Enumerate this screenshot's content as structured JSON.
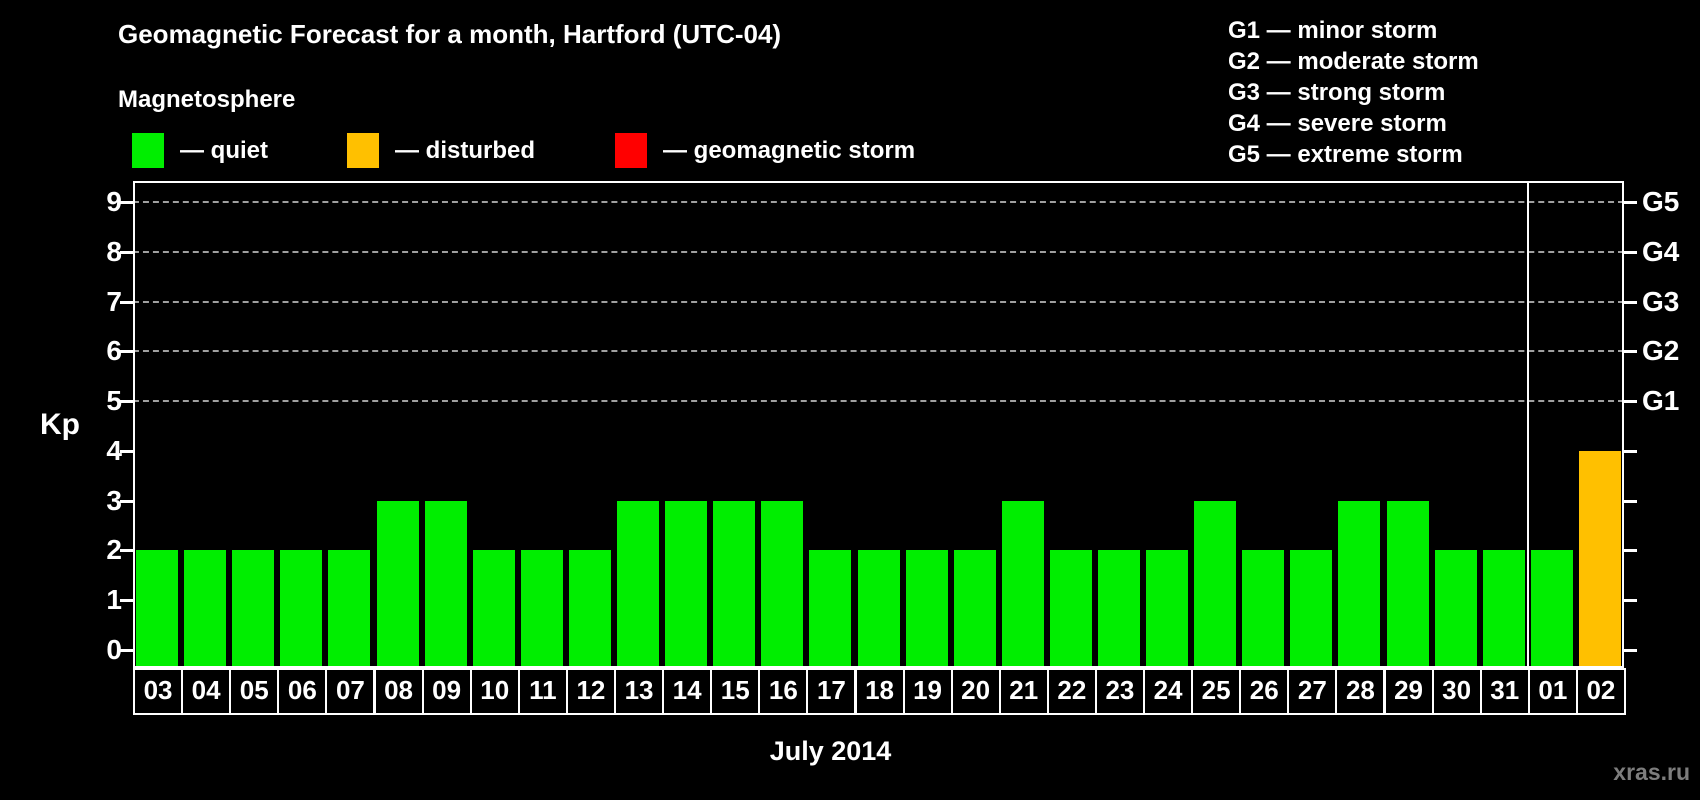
{
  "title": "Geomagnetic Forecast for a month, Hartford (UTC-04)",
  "legend": {
    "heading": "Magnetosphere",
    "items": [
      {
        "status": "quiet",
        "label": "— quiet",
        "color": "#00ee00"
      },
      {
        "status": "disturbed",
        "label": "— disturbed",
        "color": "#ffc000"
      },
      {
        "status": "storm",
        "label": "— geomagnetic storm",
        "color": "#ff0000"
      }
    ]
  },
  "storm_scale": [
    "G1 — minor storm",
    "G2 — moderate storm",
    "G3 — strong storm",
    "G4 — severe storm",
    "G5 — extreme storm"
  ],
  "watermark": "xras.ru",
  "chart_data": {
    "type": "bar",
    "title": "Geomagnetic Forecast for a month, Hartford (UTC-04)",
    "xlabel": "July 2014",
    "ylabel": "Kp",
    "ylim": [
      0,
      9
    ],
    "yticks": [
      0,
      1,
      2,
      3,
      4,
      5,
      6,
      7,
      8,
      9
    ],
    "gridlines_at": [
      5,
      6,
      7,
      8,
      9
    ],
    "grid": "dashed horizontal at storm levels only",
    "legend_position": "top-left",
    "right_axis": [
      {
        "label": "G1",
        "kp": 5
      },
      {
        "label": "G2",
        "kp": 6
      },
      {
        "label": "G3",
        "kp": 7
      },
      {
        "label": "G4",
        "kp": 8
      },
      {
        "label": "G5",
        "kp": 9
      }
    ],
    "categories": [
      "03",
      "04",
      "05",
      "06",
      "07",
      "08",
      "09",
      "10",
      "11",
      "12",
      "13",
      "14",
      "15",
      "16",
      "17",
      "18",
      "19",
      "20",
      "21",
      "22",
      "23",
      "24",
      "25",
      "26",
      "27",
      "28",
      "29",
      "30",
      "31",
      "01",
      "02"
    ],
    "values": [
      2,
      2,
      2,
      2,
      2,
      3,
      3,
      2,
      2,
      2,
      3,
      3,
      3,
      3,
      2,
      2,
      2,
      2,
      3,
      2,
      2,
      2,
      3,
      2,
      2,
      3,
      3,
      2,
      2,
      2,
      4
    ],
    "statuses": [
      "quiet",
      "quiet",
      "quiet",
      "quiet",
      "quiet",
      "quiet",
      "quiet",
      "quiet",
      "quiet",
      "quiet",
      "quiet",
      "quiet",
      "quiet",
      "quiet",
      "quiet",
      "quiet",
      "quiet",
      "quiet",
      "quiet",
      "quiet",
      "quiet",
      "quiet",
      "quiet",
      "quiet",
      "quiet",
      "quiet",
      "quiet",
      "quiet",
      "quiet",
      "quiet",
      "disturbed"
    ],
    "colors": {
      "quiet": "#00ee00",
      "disturbed": "#ffc000",
      "storm": "#ff0000"
    },
    "separator_before_category": "01"
  }
}
